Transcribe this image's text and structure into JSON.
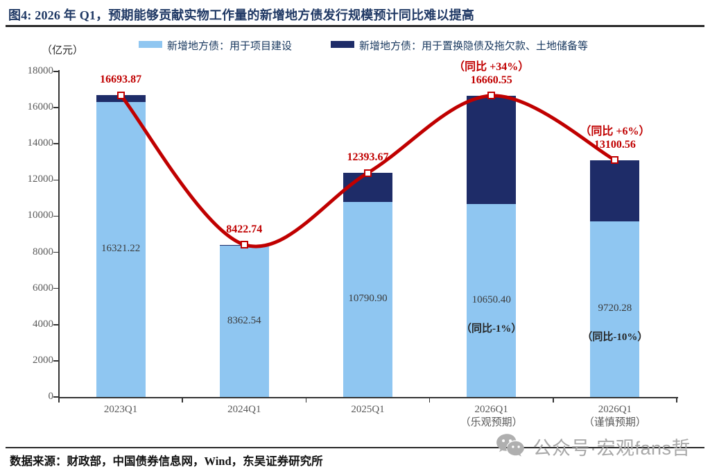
{
  "title": "图4:  2026 年 Q1，预期能够贡献实物工作量的新增地方债发行规模预计同比难以提高",
  "unit_label": "（亿元）",
  "legend": [
    {
      "label": "新增地方债：用于项目建设",
      "color": "#8FC6F1"
    },
    {
      "label": "新增地方债：用于置换隐债及拖欠款、土地储备等",
      "color": "#1E2C68"
    }
  ],
  "footer": {
    "source": "数据来源：财政部，中国债券信息网，Wind，东吴证券研究所"
  },
  "watermark": {
    "text": "公众号·宏观fans哲",
    "icon": "wechat-icon",
    "color": "#A8A8A8"
  },
  "chart_data": {
    "type": "bar",
    "subtype": "stacked bars with smooth total line",
    "title": "2026 年 Q1，预期能够贡献实物工作量的新增地方债发行规模预计同比难以提高",
    "unit": "亿元",
    "categories": [
      "2023Q1",
      "2024Q1",
      "2025Q1",
      "2026Q1",
      "2026Q1"
    ],
    "category_sublabels": [
      "",
      "",
      "",
      "（乐观预期）",
      "（谨慎预期）"
    ],
    "series": [
      {
        "name": "新增地方债：用于项目建设",
        "color": "#8FC6F1",
        "values": [
          16321.22,
          8362.54,
          10790.9,
          10650.4,
          9720.28
        ],
        "labels": [
          "16321.22",
          "8362.54",
          "10790.90",
          "10650.40",
          "9720.28"
        ],
        "yoy_labels": [
          "",
          "",
          "",
          "（同比-1%）",
          "（同比-10%）"
        ]
      },
      {
        "name": "新增地方债：用于置换隐债及拖欠款、土地储备等",
        "color": "#1E2C68",
        "values": [
          372.65,
          60.2,
          1602.77,
          6010.15,
          3380.28
        ]
      }
    ],
    "line": {
      "name": "新增地方债合计",
      "color": "#C00000",
      "values": [
        16693.87,
        8422.74,
        12393.67,
        16660.55,
        13100.56
      ],
      "labels": [
        "16693.87",
        "8422.74",
        "12393.67",
        "16660.55",
        "13100.56"
      ],
      "yoy_labels": [
        "",
        "",
        "",
        "（同比 +34%）",
        "（同比 +6%）"
      ]
    },
    "ylim": [
      0,
      18000
    ],
    "ytick_step": 2000,
    "grid": false,
    "legend_position": "top"
  }
}
